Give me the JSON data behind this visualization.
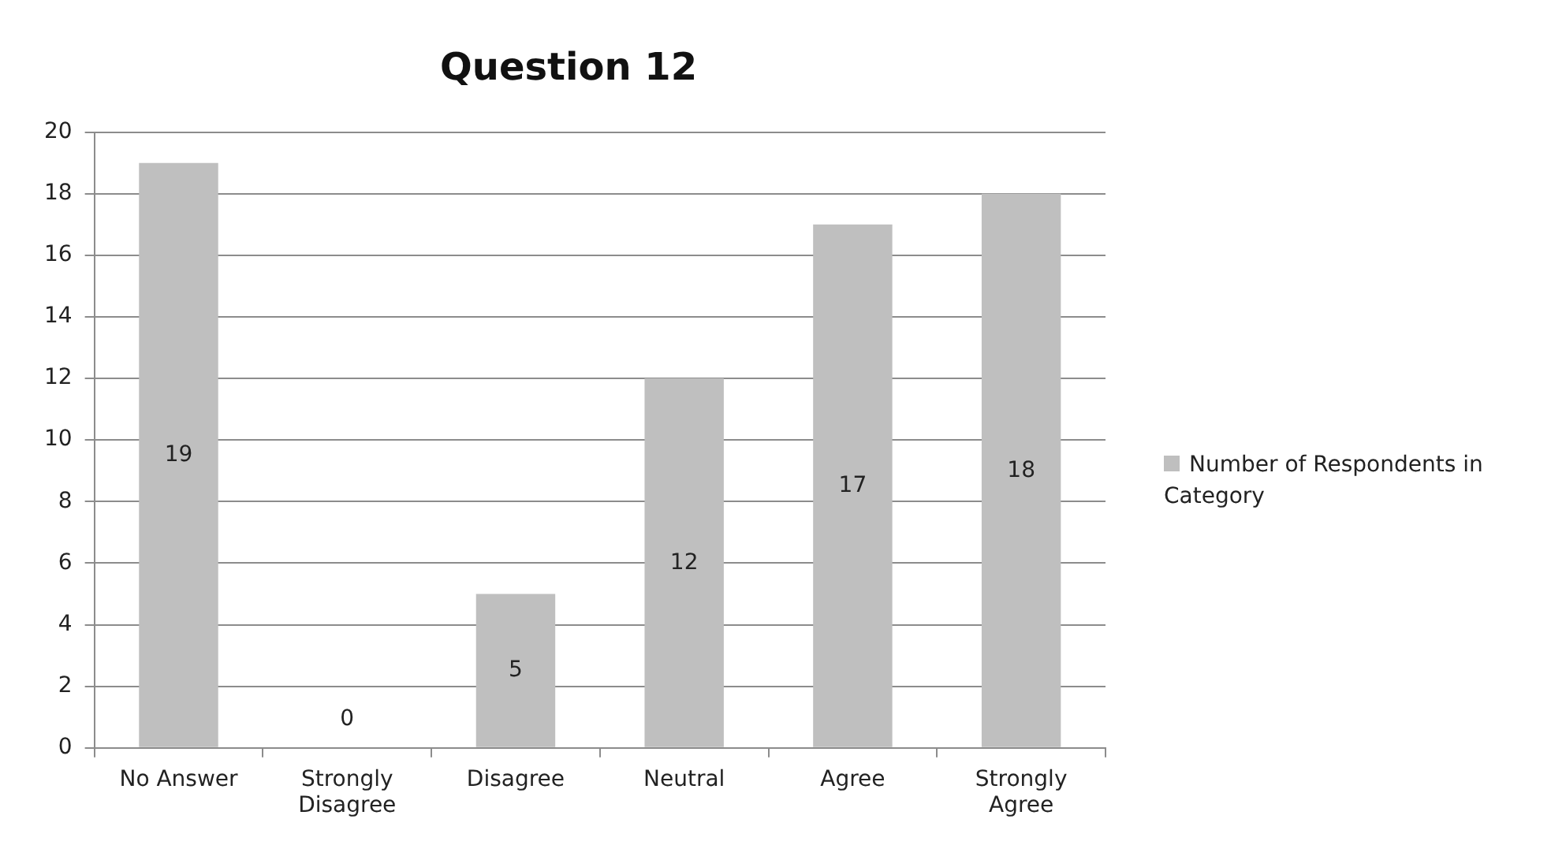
{
  "chart_data": {
    "type": "bar",
    "title": "Question 12",
    "categories": [
      "No Answer",
      "Strongly Disagree",
      "Disagree",
      "Neutral",
      "Agree",
      "Strongly Agree"
    ],
    "series": [
      {
        "name": "Number of Respondents in Category",
        "color": "#bfbfbf",
        "values": [
          19,
          0,
          5,
          12,
          17,
          18
        ]
      }
    ],
    "ylim": [
      0,
      20
    ],
    "yticks": [
      0,
      2,
      4,
      6,
      8,
      10,
      12,
      14,
      16,
      18,
      20
    ],
    "grid": "y",
    "legend": "right",
    "data_labels": true
  }
}
